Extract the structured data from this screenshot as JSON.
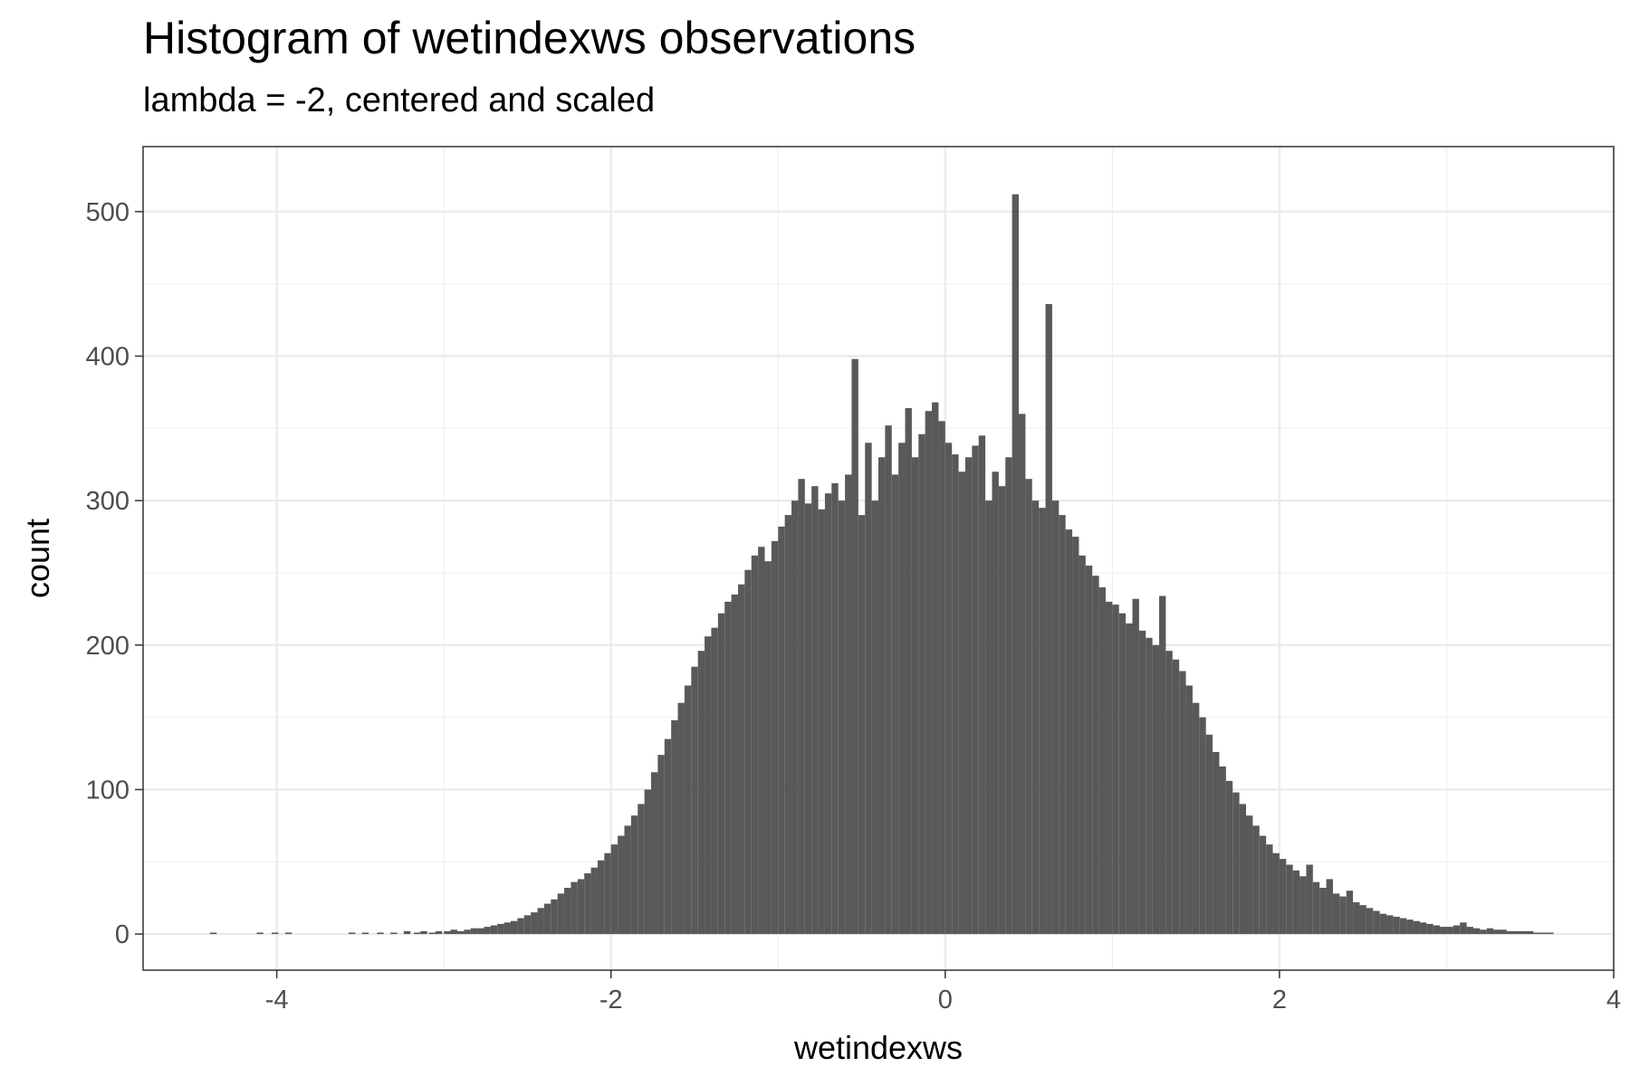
{
  "chart_data": {
    "type": "bar",
    "title": "Histogram of wetindexws observations",
    "subtitle": "lambda = -2, centered and scaled",
    "xlabel": "wetindexws",
    "ylabel": "count",
    "xlim": [
      -4.8,
      4.0
    ],
    "ylim": [
      -25,
      545
    ],
    "x_ticks": [
      -4,
      -2,
      0,
      2,
      4
    ],
    "x_tick_labels": [
      "-4",
      "-2",
      "0",
      "2",
      "4"
    ],
    "y_ticks": [
      0,
      100,
      200,
      300,
      400,
      500
    ],
    "y_tick_labels": [
      "0",
      "100",
      "200",
      "300",
      "400",
      "500"
    ],
    "grid": true,
    "bar_color": "#595959",
    "bins": [
      [
        -4.38,
        1
      ],
      [
        -4.1,
        1
      ],
      [
        -4.01,
        1
      ],
      [
        -3.93,
        1
      ],
      [
        -3.55,
        1
      ],
      [
        -3.47,
        1
      ],
      [
        -3.38,
        1
      ],
      [
        -3.3,
        1
      ],
      [
        -3.22,
        2
      ],
      [
        -3.16,
        1
      ],
      [
        -3.12,
        2
      ],
      [
        -3.07,
        1
      ],
      [
        -3.03,
        2
      ],
      [
        -2.98,
        2
      ],
      [
        -2.94,
        3
      ],
      [
        -2.9,
        2
      ],
      [
        -2.86,
        3
      ],
      [
        -2.82,
        4
      ],
      [
        -2.78,
        4
      ],
      [
        -2.74,
        5
      ],
      [
        -2.7,
        6
      ],
      [
        -2.66,
        7
      ],
      [
        -2.62,
        8
      ],
      [
        -2.58,
        9
      ],
      [
        -2.54,
        11
      ],
      [
        -2.5,
        13
      ],
      [
        -2.46,
        15
      ],
      [
        -2.42,
        18
      ],
      [
        -2.38,
        21
      ],
      [
        -2.34,
        24
      ],
      [
        -2.3,
        28
      ],
      [
        -2.26,
        32
      ],
      [
        -2.22,
        36
      ],
      [
        -2.18,
        38
      ],
      [
        -2.14,
        42
      ],
      [
        -2.1,
        46
      ],
      [
        -2.06,
        51
      ],
      [
        -2.02,
        56
      ],
      [
        -1.98,
        62
      ],
      [
        -1.94,
        68
      ],
      [
        -1.9,
        75
      ],
      [
        -1.86,
        82
      ],
      [
        -1.82,
        90
      ],
      [
        -1.78,
        100
      ],
      [
        -1.74,
        112
      ],
      [
        -1.7,
        124
      ],
      [
        -1.66,
        135
      ],
      [
        -1.62,
        148
      ],
      [
        -1.58,
        160
      ],
      [
        -1.54,
        172
      ],
      [
        -1.5,
        185
      ],
      [
        -1.46,
        196
      ],
      [
        -1.42,
        206
      ],
      [
        -1.38,
        212
      ],
      [
        -1.34,
        222
      ],
      [
        -1.3,
        230
      ],
      [
        -1.26,
        235
      ],
      [
        -1.22,
        242
      ],
      [
        -1.18,
        252
      ],
      [
        -1.14,
        262
      ],
      [
        -1.1,
        268
      ],
      [
        -1.06,
        258
      ],
      [
        -1.02,
        272
      ],
      [
        -0.98,
        282
      ],
      [
        -0.94,
        290
      ],
      [
        -0.9,
        300
      ],
      [
        -0.86,
        315
      ],
      [
        -0.82,
        298
      ],
      [
        -0.78,
        310
      ],
      [
        -0.74,
        294
      ],
      [
        -0.7,
        305
      ],
      [
        -0.66,
        312
      ],
      [
        -0.62,
        300
      ],
      [
        -0.58,
        318
      ],
      [
        -0.54,
        398
      ],
      [
        -0.5,
        290
      ],
      [
        -0.46,
        340
      ],
      [
        -0.42,
        300
      ],
      [
        -0.38,
        330
      ],
      [
        -0.34,
        352
      ],
      [
        -0.3,
        318
      ],
      [
        -0.26,
        340
      ],
      [
        -0.22,
        364
      ],
      [
        -0.18,
        330
      ],
      [
        -0.14,
        346
      ],
      [
        -0.1,
        362
      ],
      [
        -0.06,
        368
      ],
      [
        -0.02,
        355
      ],
      [
        0.02,
        340
      ],
      [
        0.06,
        332
      ],
      [
        0.1,
        320
      ],
      [
        0.14,
        330
      ],
      [
        0.18,
        338
      ],
      [
        0.22,
        345
      ],
      [
        0.26,
        300
      ],
      [
        0.3,
        320
      ],
      [
        0.34,
        310
      ],
      [
        0.38,
        330
      ],
      [
        0.42,
        512
      ],
      [
        0.46,
        360
      ],
      [
        0.5,
        315
      ],
      [
        0.54,
        300
      ],
      [
        0.58,
        295
      ],
      [
        0.62,
        436
      ],
      [
        0.66,
        300
      ],
      [
        0.7,
        290
      ],
      [
        0.74,
        280
      ],
      [
        0.78,
        275
      ],
      [
        0.82,
        262
      ],
      [
        0.86,
        255
      ],
      [
        0.9,
        248
      ],
      [
        0.94,
        240
      ],
      [
        0.98,
        230
      ],
      [
        1.02,
        228
      ],
      [
        1.06,
        222
      ],
      [
        1.1,
        215
      ],
      [
        1.14,
        232
      ],
      [
        1.18,
        210
      ],
      [
        1.22,
        205
      ],
      [
        1.26,
        200
      ],
      [
        1.3,
        234
      ],
      [
        1.34,
        196
      ],
      [
        1.38,
        190
      ],
      [
        1.42,
        182
      ],
      [
        1.46,
        172
      ],
      [
        1.5,
        160
      ],
      [
        1.54,
        150
      ],
      [
        1.58,
        138
      ],
      [
        1.62,
        126
      ],
      [
        1.66,
        116
      ],
      [
        1.7,
        106
      ],
      [
        1.74,
        98
      ],
      [
        1.78,
        90
      ],
      [
        1.82,
        82
      ],
      [
        1.86,
        75
      ],
      [
        1.9,
        68
      ],
      [
        1.94,
        62
      ],
      [
        1.98,
        56
      ],
      [
        2.02,
        52
      ],
      [
        2.06,
        48
      ],
      [
        2.1,
        44
      ],
      [
        2.14,
        40
      ],
      [
        2.18,
        48
      ],
      [
        2.22,
        36
      ],
      [
        2.26,
        32
      ],
      [
        2.3,
        38
      ],
      [
        2.34,
        28
      ],
      [
        2.38,
        26
      ],
      [
        2.42,
        30
      ],
      [
        2.46,
        22
      ],
      [
        2.5,
        20
      ],
      [
        2.54,
        18
      ],
      [
        2.58,
        16
      ],
      [
        2.62,
        14
      ],
      [
        2.66,
        13
      ],
      [
        2.7,
        12
      ],
      [
        2.74,
        11
      ],
      [
        2.78,
        10
      ],
      [
        2.82,
        9
      ],
      [
        2.86,
        8
      ],
      [
        2.9,
        7
      ],
      [
        2.94,
        6
      ],
      [
        2.98,
        5
      ],
      [
        3.02,
        5
      ],
      [
        3.06,
        6
      ],
      [
        3.1,
        8
      ],
      [
        3.14,
        5
      ],
      [
        3.18,
        4
      ],
      [
        3.22,
        3
      ],
      [
        3.26,
        4
      ],
      [
        3.3,
        3
      ],
      [
        3.34,
        3
      ],
      [
        3.38,
        2
      ],
      [
        3.42,
        2
      ],
      [
        3.46,
        2
      ],
      [
        3.5,
        2
      ],
      [
        3.54,
        1
      ],
      [
        3.58,
        1
      ],
      [
        3.62,
        1
      ]
    ]
  }
}
